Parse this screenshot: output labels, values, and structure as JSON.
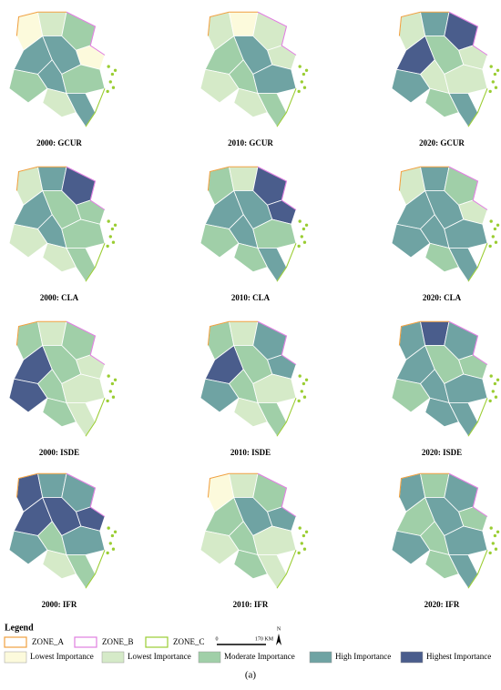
{
  "panels": [
    {
      "label": "2000: GCUR"
    },
    {
      "label": "2010: GCUR"
    },
    {
      "label": "2020: GCUR"
    },
    {
      "label": "2000: CLA"
    },
    {
      "label": "2010: CLA"
    },
    {
      "label": "2020: CLA"
    },
    {
      "label": "2000: ISDE"
    },
    {
      "label": "2010: ISDE"
    },
    {
      "label": "2020: ISDE"
    },
    {
      "label": "2000: IFR"
    },
    {
      "label": "2010: IFR"
    },
    {
      "label": "2020: IFR"
    }
  ],
  "legend": {
    "title": "Legend",
    "zones": [
      {
        "label": "ZONE_A",
        "color": "#f0a040"
      },
      {
        "label": "ZONE_B",
        "color": "#e07ee0"
      },
      {
        "label": "ZONE_C",
        "color": "#9acd32"
      }
    ],
    "scale": {
      "start": "0",
      "end": "170 KM",
      "north": "N"
    },
    "classes": [
      {
        "label": "Lowest Importance",
        "color": "#fcfadc"
      },
      {
        "label": "Lowest Importance",
        "color": "#d5eac8"
      },
      {
        "label": "Moderate Importance",
        "color": "#a0cfa8"
      },
      {
        "label": "High Importance",
        "color": "#6fa3a3"
      },
      {
        "label": "Highest Importance",
        "color": "#4a5d8c"
      }
    ]
  },
  "caption": "(a)"
}
